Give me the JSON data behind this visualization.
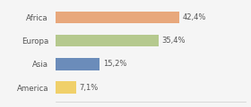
{
  "categories": [
    "Africa",
    "Europa",
    "Asia",
    "America"
  ],
  "values": [
    42.4,
    35.4,
    15.2,
    7.1
  ],
  "labels": [
    "42,4%",
    "35,4%",
    "15,2%",
    "7,1%"
  ],
  "bar_colors": [
    "#e8a87c",
    "#b5c98e",
    "#6b8cba",
    "#f0d06a"
  ],
  "background_color": "#f5f5f5",
  "label_fontsize": 6.0,
  "tick_fontsize": 6.2,
  "bar_height": 0.52,
  "xlim": [
    0,
    65
  ]
}
